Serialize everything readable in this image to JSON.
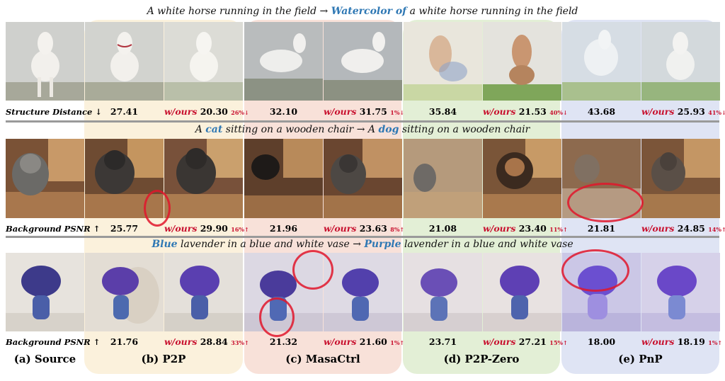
{
  "prompts": {
    "row1": {
      "pre": "A white horse running in the field",
      "arrow": " → ",
      "hl": "Watercolor of",
      "post": " a white horse running in the field"
    },
    "row2": {
      "a": "A ",
      "hl1": "cat",
      "b": " sitting on a wooden chair",
      "arrow": " → A ",
      "hl2": "dog",
      "c": " sitting on a wooden chair"
    },
    "row3": {
      "hl1": "Blue",
      "a": " lavender in a blue and white vase",
      "arrow": " → ",
      "hl2": "Purple",
      "b": " lavender in a blue and white vase"
    }
  },
  "metrics": {
    "row1": "Structure Distance ↓",
    "row2": "Background PSNR ↑",
    "row3": "Background PSNR ↑"
  },
  "ours_label": "w/ours",
  "methods": [
    "(a) Source",
    "(b) P2P",
    "(c) MasaCtrl",
    "(d) P2P-Zero",
    "(e) PnP"
  ],
  "colors": {
    "p2p": "#fbf1dc",
    "masactrl": "#f8e1d9",
    "p2pzero": "#e3efd6",
    "pnp": "#dfe4f4",
    "highlight": "#2f78b4",
    "ours": "#c8102e"
  },
  "chart_data": {
    "type": "table",
    "columns": [
      "Source",
      "P2P",
      "P2P w/ours",
      "MasaCtrl",
      "MasaCtrl w/ours",
      "P2P-Zero",
      "P2P-Zero w/ours",
      "PnP",
      "PnP w/ours"
    ],
    "rows": [
      {
        "metric": "Structure Distance ↓",
        "values": {
          "p2p": "27.41",
          "p2p_ours": "20.30",
          "p2p_pct": "26%↓",
          "masactrl": "32.10",
          "masactrl_ours": "31.75",
          "masactrl_pct": "1%↓",
          "p2pzero": "35.84",
          "p2pzero_ours": "21.53",
          "p2pzero_pct": "40%↓",
          "pnp": "43.68",
          "pnp_ours": "25.93",
          "pnp_pct": "41%↓"
        }
      },
      {
        "metric": "Background PSNR ↑",
        "values": {
          "p2p": "25.77",
          "p2p_ours": "29.90",
          "p2p_pct": "16%↑",
          "masactrl": "21.96",
          "masactrl_ours": "23.63",
          "masactrl_pct": "8%↑",
          "p2pzero": "21.08",
          "p2pzero_ours": "23.40",
          "p2pzero_pct": "11%↑",
          "pnp": "21.81",
          "pnp_ours": "24.85",
          "pnp_pct": "14%↑"
        }
      },
      {
        "metric": "Background PSNR ↑",
        "values": {
          "p2p": "21.76",
          "p2p_ours": "28.84",
          "p2p_pct": "33%↑",
          "masactrl": "21.32",
          "masactrl_ours": "21.60",
          "masactrl_pct": "1%↑",
          "p2pzero": "23.71",
          "p2pzero_ours": "27.21",
          "p2pzero_pct": "15%↑",
          "pnp": "18.00",
          "pnp_ours": "18.19",
          "pnp_pct": "1%↑"
        }
      }
    ]
  }
}
